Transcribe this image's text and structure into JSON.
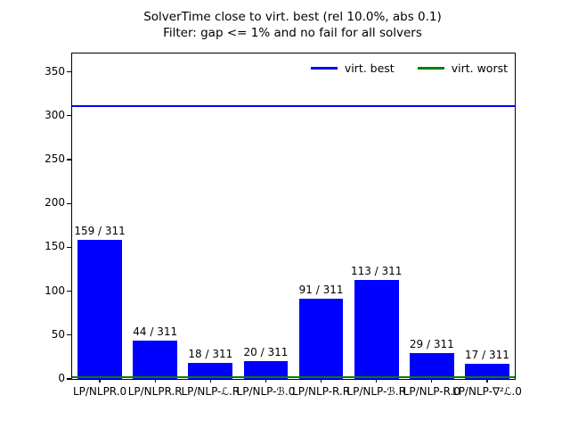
{
  "title": {
    "line1": "SolverTime close to virt. best (rel 10.0%, abs 0.1)",
    "line2": "Filter: gap <= 1% and no fail for all solvers"
  },
  "legend": {
    "items": [
      {
        "label": "virt. best",
        "color": "#0000ff"
      },
      {
        "label": "virt. worst",
        "color": "#008000"
      }
    ]
  },
  "chart_data": {
    "type": "bar",
    "title": "SolverTime close to virt. best (rel 10.0%, abs 0.1)",
    "subtitle": "Filter: gap <= 1% and no fail for all solvers",
    "categories": [
      "LP/NLPR.0",
      "LP/NLPR.R",
      "LP/NLP-ℒ.R",
      "LP/NLP-ℬ.0",
      "LP/NLP-R.R",
      "LP/NLP-ℬ.R",
      "LP/NLP-R.0",
      "LP/NLP-∇²ℒ.0"
    ],
    "values": [
      159,
      44,
      18,
      20,
      91,
      113,
      29,
      17
    ],
    "bar_labels": [
      "159 / 311",
      "44 / 311",
      "18 / 311",
      "20 / 311",
      "91 / 311",
      "113 / 311",
      "29 / 311",
      "17 / 311"
    ],
    "total_instances": 311,
    "bar_color": "#0000ff",
    "hlines": [
      {
        "name": "virt. best",
        "y": 311,
        "color": "#0000ff"
      },
      {
        "name": "virt. worst",
        "y": 2,
        "color": "#008000"
      }
    ],
    "yticks": [
      0,
      50,
      100,
      150,
      200,
      250,
      300,
      350
    ],
    "ylim": [
      0,
      371
    ],
    "xlabel": "",
    "ylabel": "",
    "grid": false,
    "legend_position": "upper right"
  }
}
